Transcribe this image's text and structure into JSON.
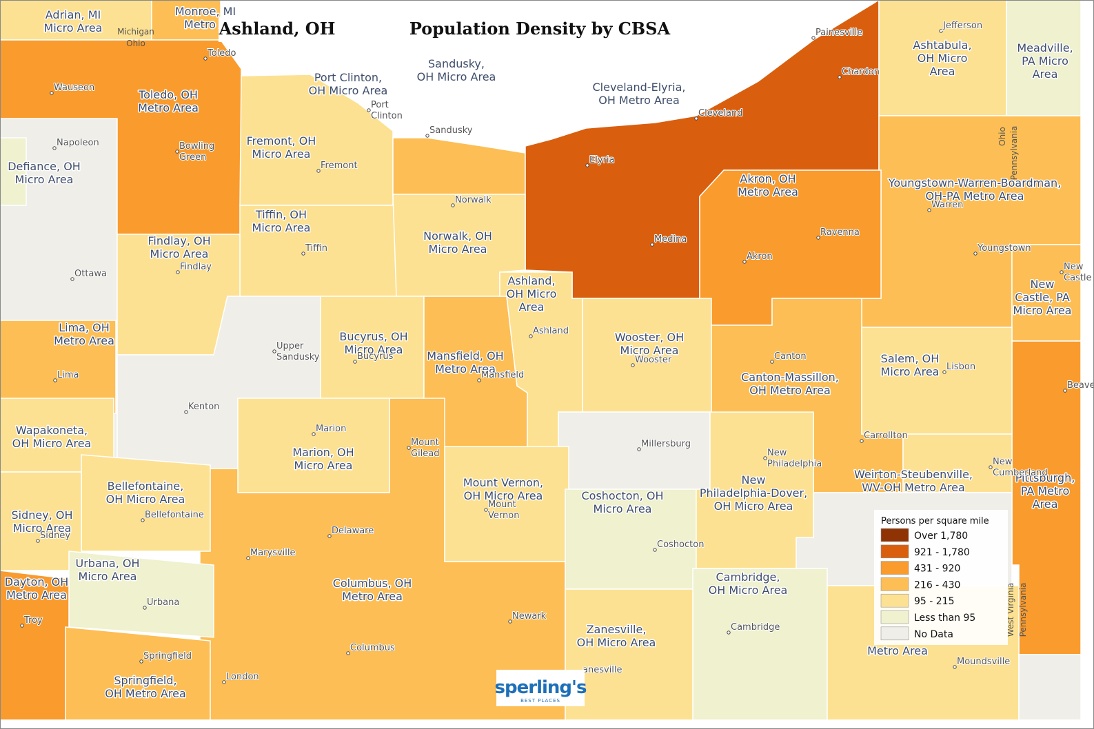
{
  "title": "Ashland, OH",
  "subtitle": "Population Density by CBSA",
  "legend": {
    "title": "Persons per square mile",
    "items": [
      {
        "label": "Over 1,780",
        "color": "#8f3304"
      },
      {
        "label": "921 - 1,780",
        "color": "#d95f0e"
      },
      {
        "label": "431 - 920",
        "color": "#f99b2d"
      },
      {
        "label": "216 - 430",
        "color": "#fcbe55"
      },
      {
        "label": "95 - 215",
        "color": "#fde192"
      },
      {
        "label": "Less than 95",
        "color": "#eff1cf"
      },
      {
        "label": "No Data",
        "color": "#efeee9"
      }
    ]
  },
  "regions": [
    {
      "lines": [
        "Adrian, MI",
        "Micro Area"
      ]
    },
    {
      "lines": [
        "Monroe, MI",
        "Metro A"
      ]
    },
    {
      "lines": [
        "Toledo, OH",
        "Metro Area"
      ]
    },
    {
      "lines": [
        "Port Clinton,",
        "OH Micro Area"
      ]
    },
    {
      "lines": [
        "Sandusky,",
        "OH Micro Area"
      ]
    },
    {
      "lines": [
        "Cleveland-Elyria,",
        "OH Metro Area"
      ]
    },
    {
      "lines": [
        "Ashtabula,",
        "OH Micro",
        "Area"
      ]
    },
    {
      "lines": [
        "Meadville,",
        "PA Micro",
        "Area"
      ]
    },
    {
      "lines": [
        "Defiance, OH",
        "Micro Area"
      ]
    },
    {
      "lines": [
        "Fremont, OH",
        "Micro Area"
      ]
    },
    {
      "lines": [
        "Akron, OH",
        "Metro Area"
      ]
    },
    {
      "lines": [
        "Youngstown-Warren-Boardman,",
        "OH-PA Metro Area"
      ]
    },
    {
      "lines": [
        "Tiffin, OH",
        "Micro Area"
      ]
    },
    {
      "lines": [
        "Norwalk, OH",
        "Micro Area"
      ]
    },
    {
      "lines": [
        "Findlay, OH",
        "Micro Area"
      ]
    },
    {
      "lines": [
        "Ashland,",
        "OH Micro",
        "Area"
      ]
    },
    {
      "lines": [
        "New",
        "Castle, PA",
        "Micro Area"
      ]
    },
    {
      "lines": [
        "Lima, OH",
        "Metro Area"
      ]
    },
    {
      "lines": [
        "Bucyrus, OH",
        "Micro Area"
      ]
    },
    {
      "lines": [
        "Mansfield, OH",
        "Metro Area"
      ]
    },
    {
      "lines": [
        "Wooster, OH",
        "Micro Area"
      ]
    },
    {
      "lines": [
        "Salem, OH",
        "Micro Area"
      ]
    },
    {
      "lines": [
        "Canton-Massillon,",
        "OH Metro Area"
      ]
    },
    {
      "lines": [
        "Wapakoneta,",
        "OH Micro Area"
      ]
    },
    {
      "lines": [
        "Marion, OH",
        "Micro Area"
      ]
    },
    {
      "lines": [
        "Pittsburgh,",
        "PA Metro",
        "Area"
      ]
    },
    {
      "lines": [
        "Bellefontaine,",
        "OH Micro Area"
      ]
    },
    {
      "lines": [
        "Mount Vernon,",
        "OH Micro Area"
      ]
    },
    {
      "lines": [
        "Weirton-Steubenville,",
        "WV-OH Metro Area"
      ]
    },
    {
      "lines": [
        "New",
        "Philadelphia-Dover,",
        "OH Micro Area"
      ]
    },
    {
      "lines": [
        "Coshocton, OH",
        "Micro Area"
      ]
    },
    {
      "lines": [
        "Sidney, OH",
        "Micro Area"
      ]
    },
    {
      "lines": [
        "Urbana, OH",
        "Micro Area"
      ]
    },
    {
      "lines": [
        "Dayton, OH",
        "Metro Area"
      ]
    },
    {
      "lines": [
        "Columbus, OH",
        "Metro Area"
      ]
    },
    {
      "lines": [
        "Cambridge,",
        "OH Micro Area"
      ]
    },
    {
      "lines": [
        "Zanesville,",
        "OH Micro Area"
      ]
    },
    {
      "lines": [
        "Springfield,",
        "OH Metro Area"
      ]
    },
    {
      "lines": [
        "Metro Area"
      ]
    }
  ],
  "cities": [
    {
      "lines": [
        "Toledo"
      ]
    },
    {
      "lines": [
        "Wauseon"
      ]
    },
    {
      "lines": [
        "Napoleon"
      ]
    },
    {
      "lines": [
        "Bowling",
        "Green"
      ]
    },
    {
      "lines": [
        "Ottawa"
      ]
    },
    {
      "lines": [
        "Findlay"
      ]
    },
    {
      "lines": [
        "Lima"
      ]
    },
    {
      "lines": [
        "Kenton"
      ]
    },
    {
      "lines": [
        "Upper",
        "Sandusky"
      ]
    },
    {
      "lines": [
        "Tiffin"
      ]
    },
    {
      "lines": [
        "Fremont"
      ]
    },
    {
      "lines": [
        "Port",
        "Clinton"
      ]
    },
    {
      "lines": [
        "Sandusky"
      ]
    },
    {
      "lines": [
        "Norwalk"
      ]
    },
    {
      "lines": [
        "Bucyrus"
      ]
    },
    {
      "lines": [
        "Mansfield"
      ]
    },
    {
      "lines": [
        "Ashland"
      ]
    },
    {
      "lines": [
        "Marion"
      ]
    },
    {
      "lines": [
        "Mount",
        "Gilead"
      ]
    },
    {
      "lines": [
        "Wooster"
      ]
    },
    {
      "lines": [
        "Elyria"
      ]
    },
    {
      "lines": [
        "Cleveland"
      ]
    },
    {
      "lines": [
        "Painesville"
      ]
    },
    {
      "lines": [
        "Chardon"
      ]
    },
    {
      "lines": [
        "Medina"
      ]
    },
    {
      "lines": [
        "Akron"
      ]
    },
    {
      "lines": [
        "Ravenna"
      ]
    },
    {
      "lines": [
        "Canton"
      ]
    },
    {
      "lines": [
        "Jefferson"
      ]
    },
    {
      "lines": [
        "Warren"
      ]
    },
    {
      "lines": [
        "Youngstown"
      ]
    },
    {
      "lines": [
        "New",
        "Castle"
      ]
    },
    {
      "lines": [
        "Beaver"
      ]
    },
    {
      "lines": [
        "Lisbon"
      ]
    },
    {
      "lines": [
        "Carrollton"
      ]
    },
    {
      "lines": [
        "New",
        "Cumberland"
      ]
    },
    {
      "lines": [
        "New",
        "Philadelphia"
      ]
    },
    {
      "lines": [
        "Millersburg"
      ]
    },
    {
      "lines": [
        "Coshocton"
      ]
    },
    {
      "lines": [
        "Cambridge"
      ]
    },
    {
      "lines": [
        "Mount",
        "Vernon"
      ]
    },
    {
      "lines": [
        "Delaware"
      ]
    },
    {
      "lines": [
        "Marysville"
      ]
    },
    {
      "lines": [
        "Columbus"
      ]
    },
    {
      "lines": [
        "Newark"
      ]
    },
    {
      "lines": [
        "London"
      ]
    },
    {
      "lines": [
        "Springfield"
      ]
    },
    {
      "lines": [
        "Urbana"
      ]
    },
    {
      "lines": [
        "Bellefontaine"
      ]
    },
    {
      "lines": [
        "Sidney"
      ]
    },
    {
      "lines": [
        "Troy"
      ]
    },
    {
      "lines": [
        "anesville"
      ]
    },
    {
      "lines": [
        "Moundsville"
      ]
    }
  ],
  "states": [
    "Michigan",
    "Ohio",
    "Ohio",
    "Pennsylvania",
    "West Virginia",
    "Pennsylvania"
  ],
  "logo": {
    "name": "sperling's",
    "tagline": "BEST PLACES"
  }
}
